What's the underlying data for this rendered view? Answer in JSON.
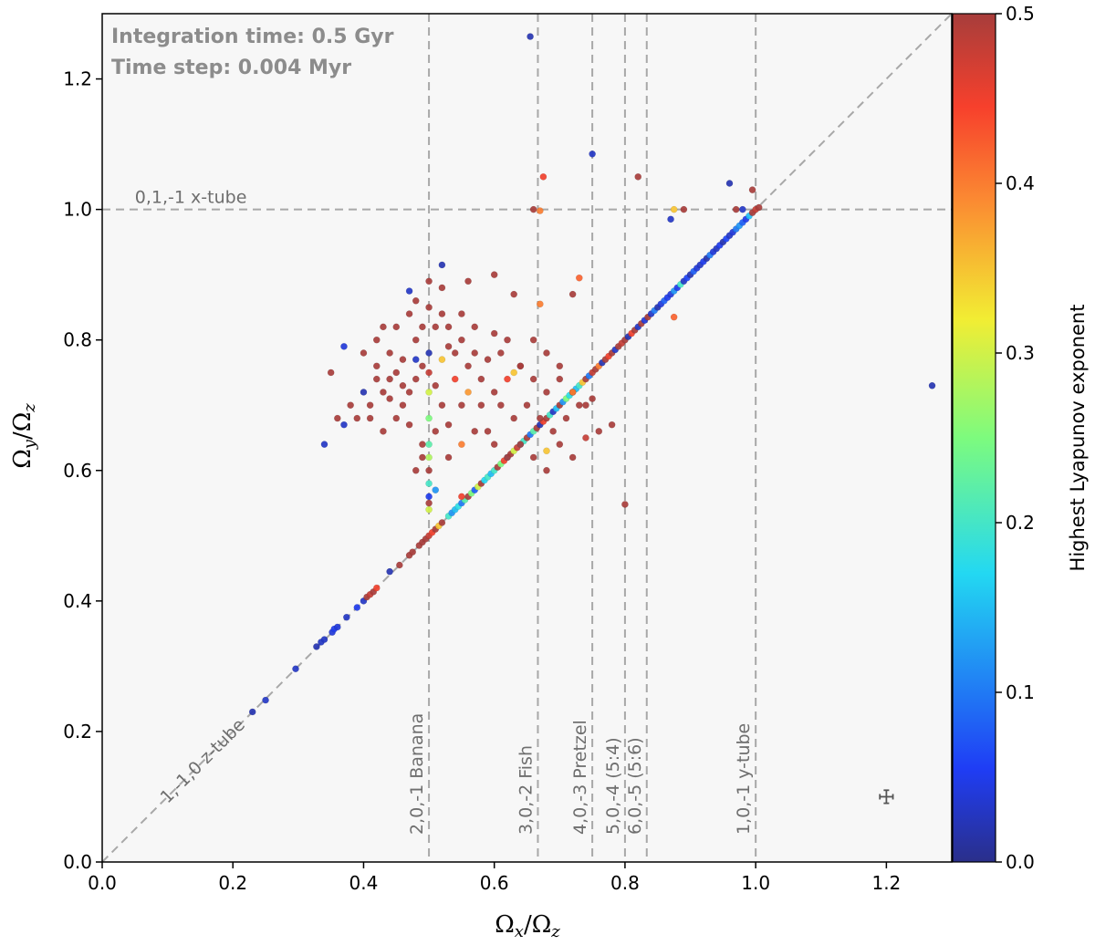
{
  "chart_data": {
    "type": "scatter",
    "xlabel_main": "Ω",
    "xlabel_sub": "x",
    "xlabel_rest": "/Ω",
    "xlabel_sub2": "z",
    "ylabel_main": "Ω",
    "ylabel_sub": "y",
    "ylabel_rest": "/Ω",
    "ylabel_sub2": "z",
    "xlim": [
      0.0,
      1.3
    ],
    "ylim": [
      0.0,
      1.3
    ],
    "xticks": [
      "0.0",
      "0.2",
      "0.4",
      "0.6",
      "0.8",
      "1.0",
      "1.2"
    ],
    "yticks": [
      "0.0",
      "0.2",
      "0.4",
      "0.6",
      "0.8",
      "1.0",
      "1.2"
    ],
    "info_lines": [
      "Integration time: 0.5 Gyr",
      "Time step: 0.004 Myr"
    ],
    "colorbar": {
      "label": "Highest Lyapunov exponent",
      "range": [
        0.0,
        0.5
      ],
      "ticks": [
        "0.0",
        "0.1",
        "0.2",
        "0.3",
        "0.4",
        "0.5"
      ],
      "colormap": "jet"
    },
    "reference_lines": {
      "vertical": [
        {
          "x": 0.5,
          "label": "2,0,-1 Banana"
        },
        {
          "x": 0.6667,
          "label": "3,0,-2 Fish"
        },
        {
          "x": 0.75,
          "label": "4,0,-3 Pretzel"
        },
        {
          "x": 0.8,
          "label": "5,0,-4 (5:4)"
        },
        {
          "x": 0.8333,
          "label": "6,0,-5 (5:6)"
        },
        {
          "x": 1.0,
          "label": "1,0,-1 y-tube"
        }
      ],
      "horizontal": [
        {
          "y": 1.0,
          "label": "0,1,-1 x-tube"
        }
      ],
      "diagonal": {
        "label": "1,-1,0 z-tube"
      }
    },
    "error_bar": {
      "x": 1.2,
      "y": 0.1,
      "xerr": 0.01,
      "yerr": 0.01
    },
    "points": [
      [
        0.23,
        0.23,
        0.02
      ],
      [
        0.25,
        0.248,
        0.03
      ],
      [
        0.296,
        0.296,
        0.03
      ],
      [
        0.328,
        0.33,
        0.02
      ],
      [
        0.335,
        0.337,
        0.03
      ],
      [
        0.34,
        0.341,
        0.03
      ],
      [
        0.352,
        0.352,
        0.04
      ],
      [
        0.355,
        0.357,
        0.05
      ],
      [
        0.36,
        0.36,
        0.04
      ],
      [
        0.374,
        0.375,
        0.03
      ],
      [
        0.39,
        0.39,
        0.05
      ],
      [
        0.4,
        0.4,
        0.03
      ],
      [
        0.405,
        0.406,
        0.5
      ],
      [
        0.41,
        0.41,
        0.48
      ],
      [
        0.415,
        0.414,
        0.5
      ],
      [
        0.42,
        0.42,
        0.45
      ],
      [
        0.44,
        0.445,
        0.02
      ],
      [
        0.455,
        0.455,
        0.5
      ],
      [
        0.47,
        0.47,
        0.5
      ],
      [
        0.475,
        0.475,
        0.5
      ],
      [
        0.485,
        0.485,
        0.5
      ],
      [
        0.49,
        0.49,
        0.5
      ],
      [
        0.495,
        0.495,
        0.5
      ],
      [
        0.5,
        0.5,
        0.48
      ],
      [
        0.505,
        0.505,
        0.45
      ],
      [
        0.51,
        0.51,
        0.5
      ],
      [
        0.515,
        0.515,
        0.35
      ],
      [
        0.52,
        0.52,
        0.5
      ],
      [
        0.53,
        0.53,
        0.2
      ],
      [
        0.535,
        0.535,
        0.12
      ],
      [
        0.54,
        0.54,
        0.15
      ],
      [
        0.545,
        0.545,
        0.18
      ],
      [
        0.55,
        0.55,
        0.1
      ],
      [
        0.555,
        0.555,
        0.22
      ],
      [
        0.56,
        0.56,
        0.5
      ],
      [
        0.565,
        0.565,
        0.25
      ],
      [
        0.57,
        0.57,
        0.08
      ],
      [
        0.575,
        0.575,
        0.3
      ],
      [
        0.58,
        0.58,
        0.5
      ],
      [
        0.585,
        0.585,
        0.17
      ],
      [
        0.59,
        0.59,
        0.2
      ],
      [
        0.595,
        0.595,
        0.15
      ],
      [
        0.6,
        0.6,
        0.2
      ],
      [
        0.605,
        0.605,
        0.5
      ],
      [
        0.61,
        0.61,
        0.25
      ],
      [
        0.615,
        0.615,
        0.45
      ],
      [
        0.62,
        0.62,
        0.12
      ],
      [
        0.625,
        0.625,
        0.5
      ],
      [
        0.63,
        0.63,
        0.3
      ],
      [
        0.635,
        0.635,
        0.48
      ],
      [
        0.64,
        0.64,
        0.15
      ],
      [
        0.645,
        0.645,
        0.2
      ],
      [
        0.65,
        0.65,
        0.5
      ],
      [
        0.655,
        0.655,
        0.1
      ],
      [
        0.66,
        0.66,
        0.22
      ],
      [
        0.665,
        0.665,
        0.5
      ],
      [
        0.67,
        0.67,
        0.02
      ],
      [
        0.675,
        0.675,
        0.45
      ],
      [
        0.68,
        0.68,
        0.5
      ],
      [
        0.685,
        0.685,
        0.2
      ],
      [
        0.69,
        0.69,
        0.03
      ],
      [
        0.695,
        0.695,
        0.15
      ],
      [
        0.7,
        0.7,
        0.5
      ],
      [
        0.705,
        0.705,
        0.12
      ],
      [
        0.71,
        0.71,
        0.25
      ],
      [
        0.715,
        0.715,
        0.18
      ],
      [
        0.72,
        0.72,
        0.03
      ],
      [
        0.725,
        0.725,
        0.15
      ],
      [
        0.73,
        0.73,
        0.2
      ],
      [
        0.735,
        0.735,
        0.35
      ],
      [
        0.74,
        0.74,
        0.5
      ],
      [
        0.745,
        0.745,
        0.1
      ],
      [
        0.75,
        0.75,
        0.48
      ],
      [
        0.755,
        0.755,
        0.5
      ],
      [
        0.76,
        0.76,
        0.4
      ],
      [
        0.765,
        0.765,
        0.02
      ],
      [
        0.77,
        0.77,
        0.5
      ],
      [
        0.775,
        0.775,
        0.45
      ],
      [
        0.78,
        0.78,
        0.5
      ],
      [
        0.785,
        0.785,
        0.03
      ],
      [
        0.79,
        0.79,
        0.5
      ],
      [
        0.795,
        0.795,
        0.48
      ],
      [
        0.8,
        0.8,
        0.5
      ],
      [
        0.805,
        0.805,
        0.02
      ],
      [
        0.81,
        0.81,
        0.45
      ],
      [
        0.815,
        0.815,
        0.5
      ],
      [
        0.82,
        0.82,
        0.03
      ],
      [
        0.825,
        0.825,
        0.5
      ],
      [
        0.83,
        0.83,
        0.04
      ],
      [
        0.835,
        0.835,
        0.5
      ],
      [
        0.84,
        0.84,
        0.03
      ],
      [
        0.845,
        0.845,
        0.1
      ],
      [
        0.85,
        0.85,
        0.02
      ],
      [
        0.855,
        0.855,
        0.04
      ],
      [
        0.86,
        0.86,
        0.08
      ],
      [
        0.865,
        0.865,
        0.05
      ],
      [
        0.87,
        0.87,
        0.04
      ],
      [
        0.875,
        0.875,
        0.12
      ],
      [
        0.88,
        0.88,
        0.05
      ],
      [
        0.885,
        0.885,
        0.2
      ],
      [
        0.89,
        0.89,
        0.03
      ],
      [
        0.895,
        0.895,
        0.06
      ],
      [
        0.9,
        0.9,
        0.02
      ],
      [
        0.905,
        0.905,
        0.08
      ],
      [
        0.91,
        0.91,
        0.04
      ],
      [
        0.915,
        0.915,
        0.03
      ],
      [
        0.92,
        0.92,
        0.05
      ],
      [
        0.925,
        0.925,
        0.02
      ],
      [
        0.93,
        0.93,
        0.1
      ],
      [
        0.935,
        0.935,
        0.04
      ],
      [
        0.94,
        0.94,
        0.03
      ],
      [
        0.945,
        0.945,
        0.05
      ],
      [
        0.95,
        0.95,
        0.02
      ],
      [
        0.955,
        0.955,
        0.06
      ],
      [
        0.96,
        0.96,
        0.03
      ],
      [
        0.965,
        0.965,
        0.04
      ],
      [
        0.97,
        0.97,
        0.1
      ],
      [
        0.975,
        0.975,
        0.12
      ],
      [
        0.98,
        0.98,
        0.08
      ],
      [
        0.985,
        0.985,
        0.05
      ],
      [
        0.99,
        0.99,
        0.15
      ],
      [
        0.995,
        0.995,
        0.5
      ],
      [
        1.0,
        1.0,
        0.48
      ],
      [
        1.005,
        1.003,
        0.5
      ],
      [
        0.875,
        0.835,
        0.42
      ],
      [
        0.74,
        0.7,
        0.5
      ],
      [
        0.72,
        0.72,
        0.5
      ],
      [
        0.68,
        0.63,
        0.35
      ],
      [
        0.47,
        0.72,
        0.5
      ],
      [
        0.48,
        0.74,
        0.5
      ],
      [
        0.49,
        0.76,
        0.5
      ],
      [
        0.5,
        0.75,
        0.48
      ],
      [
        0.51,
        0.73,
        0.5
      ],
      [
        0.52,
        0.7,
        0.5
      ],
      [
        0.46,
        0.7,
        0.5
      ],
      [
        0.45,
        0.75,
        0.5
      ],
      [
        0.44,
        0.78,
        0.5
      ],
      [
        0.43,
        0.72,
        0.5
      ],
      [
        0.42,
        0.74,
        0.5
      ],
      [
        0.41,
        0.7,
        0.5
      ],
      [
        0.4,
        0.72,
        0.02
      ],
      [
        0.39,
        0.68,
        0.5
      ],
      [
        0.38,
        0.7,
        0.5
      ],
      [
        0.37,
        0.67,
        0.03
      ],
      [
        0.36,
        0.68,
        0.5
      ],
      [
        0.35,
        0.75,
        0.5
      ],
      [
        0.37,
        0.79,
        0.04
      ],
      [
        0.34,
        0.64,
        0.03
      ],
      [
        0.42,
        0.8,
        0.5
      ],
      [
        0.43,
        0.82,
        0.5
      ],
      [
        0.45,
        0.82,
        0.5
      ],
      [
        0.47,
        0.84,
        0.5
      ],
      [
        0.48,
        0.86,
        0.5
      ],
      [
        0.5,
        0.85,
        0.5
      ],
      [
        0.52,
        0.84,
        0.5
      ],
      [
        0.53,
        0.82,
        0.5
      ],
      [
        0.55,
        0.84,
        0.5
      ],
      [
        0.57,
        0.82,
        0.5
      ],
      [
        0.6,
        0.81,
        0.5
      ],
      [
        0.62,
        0.8,
        0.5
      ],
      [
        0.54,
        0.78,
        0.5
      ],
      [
        0.56,
        0.76,
        0.5
      ],
      [
        0.58,
        0.74,
        0.5
      ],
      [
        0.6,
        0.72,
        0.5
      ],
      [
        0.62,
        0.74,
        0.45
      ],
      [
        0.64,
        0.76,
        0.5
      ],
      [
        0.66,
        0.74,
        0.5
      ],
      [
        0.68,
        0.72,
        0.5
      ],
      [
        0.7,
        0.74,
        0.5
      ],
      [
        0.72,
        0.72,
        0.4
      ],
      [
        0.55,
        0.7,
        0.5
      ],
      [
        0.53,
        0.67,
        0.5
      ],
      [
        0.51,
        0.66,
        0.5
      ],
      [
        0.49,
        0.64,
        0.5
      ],
      [
        0.47,
        0.67,
        0.5
      ],
      [
        0.45,
        0.68,
        0.5
      ],
      [
        0.43,
        0.66,
        0.5
      ],
      [
        0.41,
        0.68,
        0.5
      ],
      [
        0.44,
        0.71,
        0.5
      ],
      [
        0.46,
        0.73,
        0.5
      ],
      [
        0.48,
        0.77,
        0.03
      ],
      [
        0.5,
        0.78,
        0.02
      ],
      [
        0.52,
        0.77,
        0.35
      ],
      [
        0.54,
        0.74,
        0.45
      ],
      [
        0.56,
        0.72,
        0.38
      ],
      [
        0.58,
        0.7,
        0.5
      ],
      [
        0.61,
        0.7,
        0.5
      ],
      [
        0.63,
        0.68,
        0.5
      ],
      [
        0.65,
        0.7,
        0.5
      ],
      [
        0.67,
        0.68,
        0.5
      ],
      [
        0.69,
        0.66,
        0.5
      ],
      [
        0.71,
        0.68,
        0.5
      ],
      [
        0.73,
        0.7,
        0.5
      ],
      [
        0.75,
        0.71,
        0.5
      ],
      [
        0.5,
        0.72,
        0.3
      ],
      [
        0.5,
        0.68,
        0.25
      ],
      [
        0.5,
        0.64,
        0.22
      ],
      [
        0.5,
        0.62,
        0.28
      ],
      [
        0.5,
        0.6,
        0.5
      ],
      [
        0.5,
        0.58,
        0.2
      ],
      [
        0.5,
        0.56,
        0.05
      ],
      [
        0.5,
        0.55,
        0.5
      ],
      [
        0.5,
        0.54,
        0.3
      ],
      [
        0.51,
        0.57,
        0.12
      ],
      [
        0.49,
        0.62,
        0.5
      ],
      [
        0.48,
        0.6,
        0.5
      ],
      [
        0.53,
        0.62,
        0.5
      ],
      [
        0.55,
        0.64,
        0.4
      ],
      [
        0.57,
        0.66,
        0.5
      ],
      [
        0.59,
        0.66,
        0.5
      ],
      [
        0.6,
        0.64,
        0.5
      ],
      [
        0.62,
        0.62,
        0.5
      ],
      [
        0.64,
        0.64,
        0.5
      ],
      [
        0.66,
        0.62,
        0.5
      ],
      [
        0.68,
        0.6,
        0.5
      ],
      [
        0.7,
        0.64,
        0.5
      ],
      [
        0.72,
        0.62,
        0.5
      ],
      [
        0.74,
        0.65,
        0.48
      ],
      [
        0.76,
        0.66,
        0.5
      ],
      [
        0.78,
        0.67,
        0.5
      ],
      [
        0.48,
        0.8,
        0.5
      ],
      [
        0.46,
        0.77,
        0.5
      ],
      [
        0.44,
        0.74,
        0.5
      ],
      [
        0.42,
        0.76,
        0.5
      ],
      [
        0.4,
        0.78,
        0.5
      ],
      [
        0.52,
        0.88,
        0.5
      ],
      [
        0.5,
        0.89,
        0.5
      ],
      [
        0.47,
        0.875,
        0.03
      ],
      [
        0.52,
        0.915,
        0.02
      ],
      [
        0.56,
        0.89,
        0.5
      ],
      [
        0.6,
        0.9,
        0.5
      ],
      [
        0.63,
        0.87,
        0.5
      ],
      [
        0.67,
        0.855,
        0.4
      ],
      [
        0.73,
        0.895,
        0.42
      ],
      [
        0.72,
        0.87,
        0.5
      ],
      [
        0.66,
        0.8,
        0.5
      ],
      [
        0.68,
        0.78,
        0.5
      ],
      [
        0.7,
        0.76,
        0.5
      ],
      [
        0.63,
        0.75,
        0.35
      ],
      [
        0.61,
        0.78,
        0.5
      ],
      [
        0.59,
        0.77,
        0.5
      ],
      [
        0.57,
        0.78,
        0.5
      ],
      [
        0.55,
        0.8,
        0.5
      ],
      [
        0.53,
        0.79,
        0.5
      ],
      [
        0.51,
        0.82,
        0.5
      ],
      [
        0.49,
        0.82,
        0.5
      ],
      [
        0.655,
        1.265,
        0.02
      ],
      [
        0.75,
        1.085,
        0.03
      ],
      [
        0.675,
        1.05,
        0.45
      ],
      [
        0.82,
        1.05,
        0.5
      ],
      [
        0.66,
        1.0,
        0.5
      ],
      [
        0.67,
        0.998,
        0.4
      ],
      [
        0.875,
        1.0,
        0.35
      ],
      [
        0.89,
        1.0,
        0.5
      ],
      [
        0.87,
        0.985,
        0.03
      ],
      [
        0.96,
        1.04,
        0.02
      ],
      [
        0.98,
        1.0,
        0.03
      ],
      [
        0.995,
        1.03,
        0.5
      ],
      [
        0.97,
        1.0,
        0.5
      ],
      [
        0.8,
        0.548,
        0.5
      ],
      [
        1.27,
        0.73,
        0.02
      ],
      [
        0.64,
        0.76,
        0.5
      ],
      [
        0.55,
        0.56,
        0.45
      ]
    ]
  }
}
